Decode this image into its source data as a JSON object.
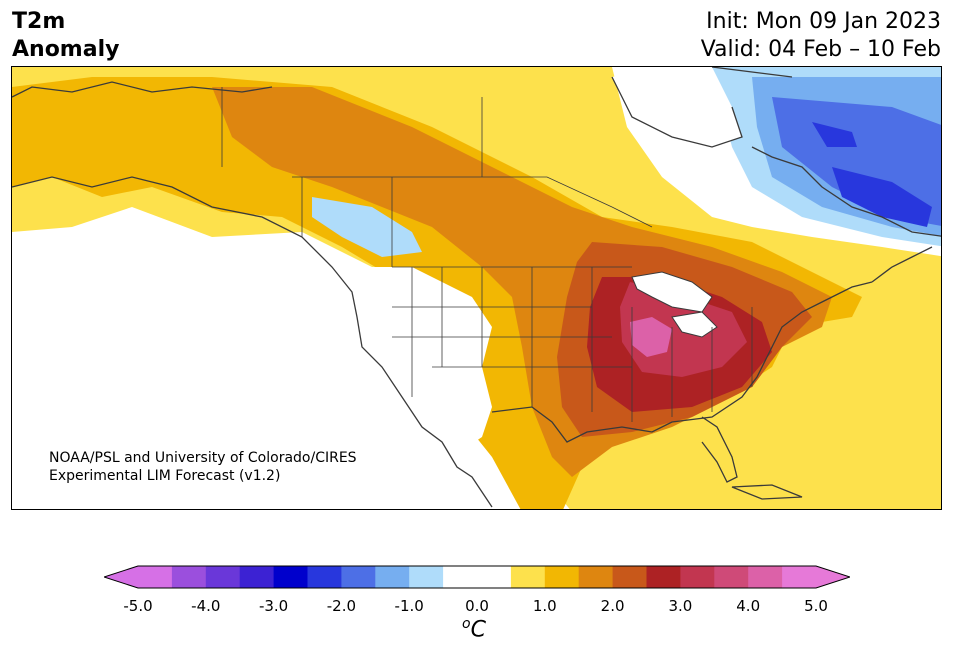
{
  "header": {
    "variable_line1": "T2m",
    "variable_line2": "Anomaly",
    "init": "Init: Mon 09 Jan 2023",
    "valid": "Valid: 04 Feb – 10 Feb"
  },
  "credit": {
    "line1": "NOAA/PSL and University of Colorado/CIRES",
    "line2": "Experimental LIM Forecast (v1.2)"
  },
  "colorbar": {
    "ticks": [
      "-5.0",
      "-4.0",
      "-3.0",
      "-2.0",
      "-1.0",
      "0.0",
      "1.0",
      "2.0",
      "3.0",
      "4.0",
      "5.0"
    ],
    "unit_base": "C",
    "unit_sup": "o",
    "colors": [
      "#d670e6",
      "#9b4fdd",
      "#6a37d9",
      "#3c22d3",
      "#0000cc",
      "#2837dd",
      "#4d6fe6",
      "#76aef0",
      "#afdcfa",
      "#ffffff",
      "#ffffff",
      "#fde14c",
      "#f2b703",
      "#de8610",
      "#c8581a",
      "#ad2224",
      "#c23650",
      "#cf4a78",
      "#dc61a8",
      "#e679d8"
    ],
    "under_color": "#d670e6",
    "over_color": "#e679d8"
  },
  "map": {
    "region": "North America",
    "field": "2m temperature anomaly",
    "warm_color_scale": [
      "#fde14c",
      "#f2b703",
      "#de8610",
      "#c8581a",
      "#ad2224",
      "#c23650",
      "#dc61a8"
    ],
    "cool_color_scale": [
      "#afdcfa",
      "#76aef0",
      "#4d6fe6",
      "#2837dd"
    ],
    "coastline_color": "#3a3a3a"
  }
}
